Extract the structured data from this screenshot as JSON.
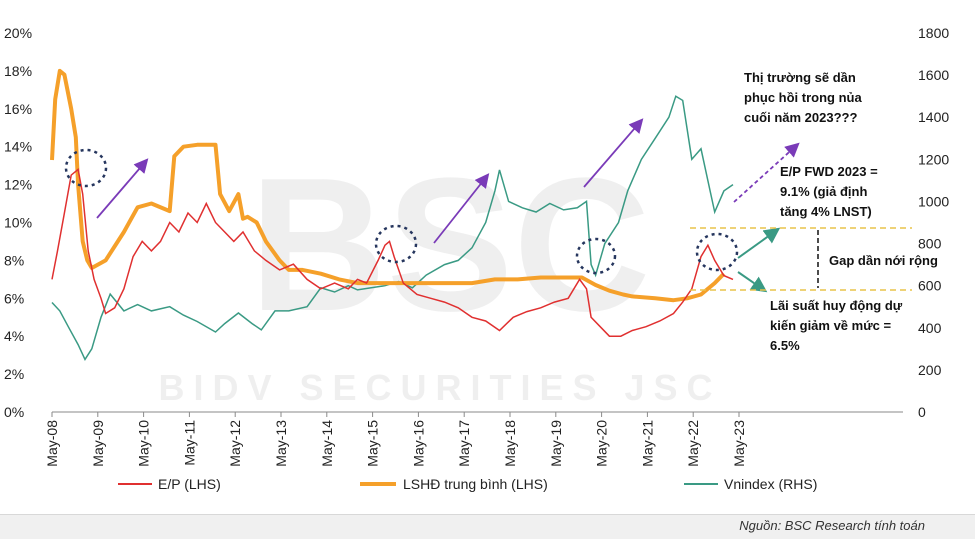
{
  "chart_data": {
    "type": "line",
    "watermark": {
      "logo": "BSC",
      "company": "BIDV SECURITIES JSC"
    },
    "x_labels": [
      "May-08",
      "May-09",
      "May-10",
      "May-11",
      "May-12",
      "May-13",
      "May-14",
      "May-15",
      "May-16",
      "May-17",
      "May-18",
      "May-19",
      "May-20",
      "May-21",
      "May-22",
      "May-23"
    ],
    "x_start": 2008.33,
    "left_axis": {
      "min": 0,
      "max": 20,
      "ticks": [
        "0%",
        "2%",
        "4%",
        "6%",
        "8%",
        "10%",
        "12%",
        "14%",
        "16%",
        "18%",
        "20%"
      ]
    },
    "right_axis": {
      "min": 0,
      "max": 1800,
      "ticks": [
        "0",
        "200",
        "400",
        "600",
        "800",
        "1000",
        "1200",
        "1400",
        "1600",
        "1800"
      ]
    },
    "series": [
      {
        "name": "E/P (LHS)",
        "color": "#e03030",
        "axis": "left",
        "x": [
          2008.33,
          2008.45,
          2008.6,
          2008.75,
          2008.9,
          2009.0,
          2009.12,
          2009.25,
          2009.4,
          2009.5,
          2009.7,
          2009.9,
          2010.1,
          2010.3,
          2010.5,
          2010.7,
          2010.9,
          2011.1,
          2011.3,
          2011.5,
          2011.7,
          2011.9,
          2012.1,
          2012.3,
          2012.5,
          2012.75,
          2013.0,
          2013.3,
          2013.6,
          2013.9,
          2014.2,
          2014.5,
          2014.8,
          2015.0,
          2015.2,
          2015.45,
          2015.6,
          2015.7,
          2015.8,
          2016.0,
          2016.3,
          2016.6,
          2016.9,
          2017.2,
          2017.5,
          2017.8,
          2018.1,
          2018.4,
          2018.7,
          2019.0,
          2019.3,
          2019.6,
          2019.85,
          2020.0,
          2020.1,
          2020.3,
          2020.5,
          2020.75,
          2021.0,
          2021.3,
          2021.6,
          2021.9,
          2022.1,
          2022.3,
          2022.5,
          2022.65,
          2022.8,
          2023.0,
          2023.2
        ],
        "values": [
          7.0,
          8.5,
          10.5,
          12.5,
          12.8,
          11.5,
          8.5,
          7.0,
          6.0,
          5.2,
          5.5,
          6.5,
          8.2,
          9.0,
          8.5,
          9.0,
          10.0,
          9.5,
          10.5,
          10.0,
          11.0,
          10.0,
          9.5,
          9.0,
          9.5,
          8.5,
          8.0,
          7.5,
          7.8,
          7.0,
          6.5,
          6.8,
          6.5,
          7.0,
          6.8,
          8.0,
          8.8,
          9.0,
          8.2,
          6.8,
          6.2,
          6.0,
          5.8,
          5.5,
          5.0,
          4.8,
          4.3,
          5.0,
          5.3,
          5.5,
          5.8,
          6.0,
          7.0,
          6.5,
          5.0,
          4.5,
          4.0,
          4.0,
          4.3,
          4.5,
          4.8,
          5.2,
          5.8,
          6.5,
          8.2,
          8.8,
          8.0,
          7.2,
          7.0
        ]
      },
      {
        "name": "LSHĐ trung bình (LHS)",
        "color": "#f5a02a",
        "axis": "left",
        "x": [
          2008.33,
          2008.4,
          2008.5,
          2008.6,
          2008.75,
          2008.85,
          2008.9,
          2009.0,
          2009.1,
          2009.2,
          2009.5,
          2009.9,
          2010.2,
          2010.5,
          2010.9,
          2011.0,
          2011.2,
          2011.5,
          2011.9,
          2012.0,
          2012.2,
          2012.4,
          2012.5,
          2012.6,
          2012.8,
          2013.0,
          2013.3,
          2013.5,
          2013.8,
          2014.2,
          2014.6,
          2015.0,
          2015.5,
          2016.0,
          2016.5,
          2017.0,
          2017.5,
          2018.0,
          2018.5,
          2019.0,
          2019.5,
          2019.9,
          2020.2,
          2020.5,
          2020.8,
          2021.0,
          2021.5,
          2021.9,
          2022.2,
          2022.5,
          2022.8,
          2023.0
        ],
        "values": [
          13.3,
          16.5,
          18.0,
          17.8,
          16.0,
          14.5,
          12.0,
          9.0,
          8.0,
          7.6,
          8.0,
          9.5,
          10.8,
          11.0,
          10.6,
          13.5,
          14.0,
          14.1,
          14.1,
          11.5,
          10.6,
          11.5,
          10.2,
          10.3,
          10.0,
          9.0,
          8.0,
          7.5,
          7.5,
          7.3,
          7.0,
          6.8,
          6.8,
          6.8,
          6.8,
          6.8,
          6.8,
          7.0,
          7.0,
          7.1,
          7.1,
          7.1,
          6.7,
          6.4,
          6.2,
          6.1,
          6.0,
          5.9,
          6.0,
          6.2,
          6.8,
          7.3
        ]
      },
      {
        "name": "Vnindex (RHS)",
        "color": "#3a9a84",
        "axis": "right",
        "x": [
          2008.33,
          2008.5,
          2008.7,
          2008.9,
          2009.05,
          2009.2,
          2009.4,
          2009.6,
          2009.9,
          2010.2,
          2010.5,
          2010.9,
          2011.2,
          2011.5,
          2011.9,
          2012.1,
          2012.4,
          2012.7,
          2012.9,
          2013.2,
          2013.5,
          2013.9,
          2014.2,
          2014.5,
          2014.8,
          2015.0,
          2015.3,
          2015.6,
          2015.9,
          2016.2,
          2016.5,
          2016.9,
          2017.2,
          2017.5,
          2017.8,
          2018.0,
          2018.1,
          2018.3,
          2018.6,
          2018.9,
          2019.2,
          2019.5,
          2019.8,
          2020.0,
          2020.1,
          2020.2,
          2020.4,
          2020.7,
          2020.9,
          2021.2,
          2021.5,
          2021.8,
          2021.95,
          2022.1,
          2022.3,
          2022.5,
          2022.7,
          2022.8,
          2022.9,
          2023.0,
          2023.2
        ],
        "values": [
          520,
          480,
          400,
          320,
          250,
          300,
          450,
          560,
          480,
          510,
          480,
          500,
          460,
          430,
          380,
          420,
          470,
          420,
          390,
          480,
          480,
          500,
          590,
          570,
          600,
          580,
          590,
          600,
          620,
          590,
          650,
          700,
          720,
          780,
          900,
          1050,
          1150,
          1000,
          970,
          950,
          990,
          960,
          970,
          1000,
          700,
          650,
          800,
          900,
          1050,
          1200,
          1300,
          1400,
          1500,
          1480,
          1200,
          1250,
          1050,
          950,
          1000,
          1050,
          1080
        ]
      }
    ],
    "annotations": {
      "text1": [
        "Thị trường sẽ dần",
        "phục hồi trong nủa",
        "cuối năm 2023???"
      ],
      "text2": [
        "E/P FWD 2023 =",
        "9.1% (giả định",
        "tăng 4% LNST)"
      ],
      "text3": "Gap dần nới rộng",
      "text4": [
        "Lãi suất huy động dự",
        "kiến giảm về mức =",
        "6.5%"
      ]
    },
    "legend": [
      "E/P (LHS)",
      "LSHĐ trung bình (LHS)",
      "Vnindex (RHS)"
    ],
    "source": "Nguồn: BSC Research tính toán",
    "colors": {
      "ep": "#e03030",
      "rate": "#f5a02a",
      "index": "#3a9a84",
      "arrow": "#7a3bb8",
      "dashed": "#e8c34a",
      "circle": "#26365e"
    }
  }
}
